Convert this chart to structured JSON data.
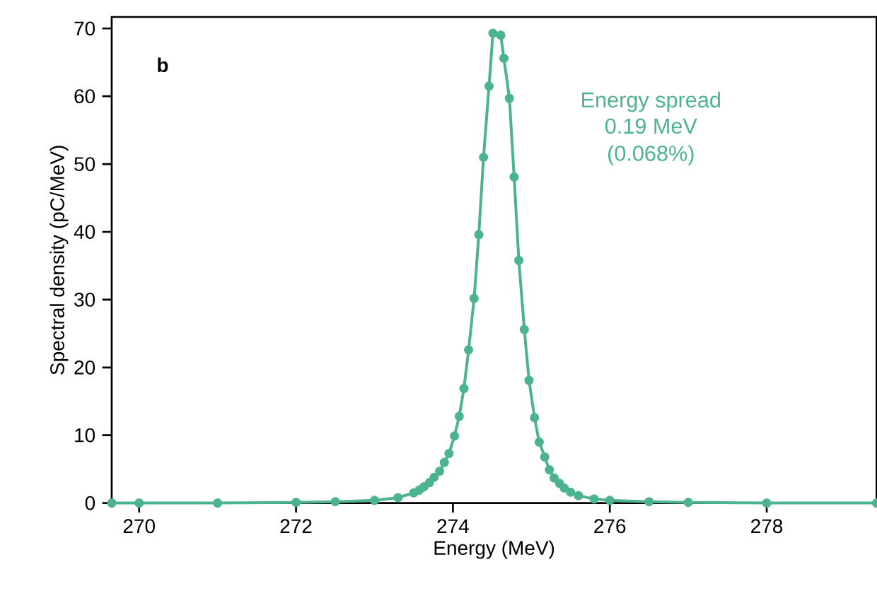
{
  "chart_data": {
    "type": "line",
    "xlabel": "Energy (MeV)",
    "ylabel": "Spectral density (pC/MeV)",
    "annotations": [
      "b",
      "Energy spread",
      "0.19 MeV",
      "(0.068%)"
    ],
    "xlim": [
      269.65,
      279.4
    ],
    "ylim": [
      0,
      71.7
    ],
    "xticks": [
      270,
      272,
      274,
      276,
      278
    ],
    "yticks": [
      0,
      10,
      20,
      30,
      40,
      50,
      60,
      70
    ],
    "marker": "circle",
    "line_style": "solid",
    "grid": false,
    "series": [
      {
        "color": "#4cb391",
        "x": [
          269.65,
          270,
          271,
          272,
          272.5,
          273,
          273.3,
          273.5,
          273.57,
          273.63,
          273.7,
          273.76,
          273.83,
          273.89,
          273.95,
          274.02,
          274.08,
          274.14,
          274.2,
          274.27,
          274.33,
          274.39,
          274.46,
          274.51,
          274.61,
          274.65,
          274.72,
          274.78,
          274.84,
          274.91,
          274.97,
          275.04,
          275.1,
          275.17,
          275.23,
          275.29,
          275.36,
          275.42,
          275.5,
          275.6,
          275.8,
          276,
          276.5,
          277,
          278,
          279.4
        ],
        "values": [
          0,
          0,
          0,
          0.1,
          0.2,
          0.4,
          0.8,
          1.5,
          1.9,
          2.4,
          3.0,
          3.8,
          4.7,
          6.0,
          7.3,
          9.9,
          12.8,
          16.9,
          22.6,
          30.2,
          39.6,
          51.0,
          61.5,
          69.3,
          69.0,
          65.6,
          59.7,
          48.1,
          35.8,
          25.6,
          18.1,
          12.6,
          9.0,
          6.8,
          4.9,
          3.7,
          2.9,
          2.2,
          1.6,
          1.1,
          0.6,
          0.4,
          0.2,
          0.1,
          0,
          0
        ]
      }
    ]
  }
}
